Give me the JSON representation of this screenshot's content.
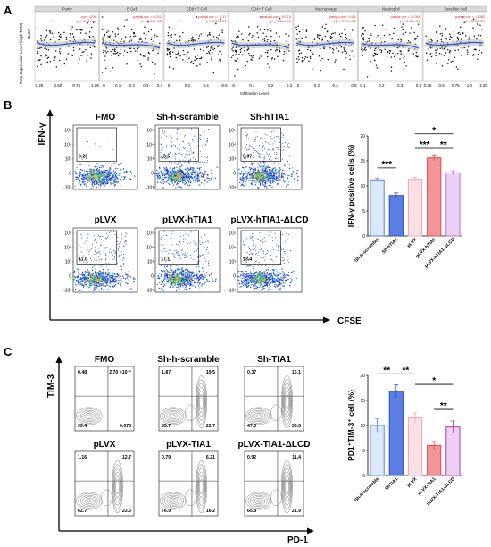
{
  "panel_letters": [
    "A",
    "B",
    "C"
  ],
  "panel_a": {
    "y_label": "TIA1 Expression Level (log2 TPM)",
    "x_label": "Infiltration Level",
    "side_label": "BLCA",
    "cells": [
      {
        "title": "Purity",
        "stat1": "cor = 0.36",
        "stat2": "p = 9.51e-12",
        "ticks": [
          "0.25",
          "0.50",
          "0.75",
          "1.00"
        ]
      },
      {
        "title": "B Cell",
        "stat1": "partial.cor = 0.211",
        "stat2": "p = 5.18e-05",
        "ticks": [
          "0",
          "0.1",
          "0.2",
          "0.3",
          "0.4"
        ]
      },
      {
        "title": "CD8+ T Cell",
        "stat1": "partial.cor = -0.17",
        "stat2": "p = 1.09e-03",
        "ticks": [
          "0",
          "0.2",
          "0.4",
          "0.6"
        ]
      },
      {
        "title": "CD4+ T Cell",
        "stat1": "partial.cor = 0.074",
        "stat2": "p = 1.61e-01",
        "ticks": [
          "0",
          "0.1",
          "0.2",
          "0.3"
        ]
      },
      {
        "title": "Macrophage",
        "stat1": "partial.cor = 0.06",
        "stat2": "p = 1.27e-01",
        "ticks": [
          "0",
          "0.2",
          "0.4",
          "0.6"
        ]
      },
      {
        "title": "Neutrophil",
        "stat1": "partial.cor = -0.059",
        "stat2": "p = 2.68e-01",
        "ticks": [
          "0.1",
          "0.2",
          "0.3",
          "0.4"
        ]
      },
      {
        "title": "Dendritic Cell",
        "stat1": "partial.cor = -0.262",
        "stat2": "p = 3.95e-07",
        "ticks": [
          "0.25",
          "0.5",
          "0.75",
          "1.0",
          "1.25"
        ]
      }
    ]
  },
  "panel_b": {
    "y_axis": "IFN-γ",
    "x_axis": "CFSE",
    "plots": [
      {
        "title": "FMO",
        "value": "0.26"
      },
      {
        "title": "Sh-h-scramble",
        "value": "13.5"
      },
      {
        "title": "Sh-hTIA1",
        "value": "5.87"
      },
      {
        "title": "pLVX",
        "value": "11.0"
      },
      {
        "title": "pLVX-hTIA1",
        "value": "17.1"
      },
      {
        "title": "pLVX-hTIA1-ΔLCD",
        "value": "13.4"
      }
    ],
    "tick_labels": [
      "10⁵",
      "10⁴",
      "10³",
      "0",
      "-10³"
    ],
    "bar_chart": {
      "y_label": "IFN-γ positive cells (%)",
      "y_ticks": [
        "20",
        "15",
        "10",
        "5",
        "0"
      ],
      "sig": [
        "***",
        "*",
        "***",
        "**"
      ],
      "categories": [
        "Sh-h-scramble",
        "Sh-hTIA1",
        "pLVX",
        "pLVX-hTIA1",
        "pLVX-hTIA1-ΔLCD"
      ]
    }
  },
  "panel_c": {
    "y_axis": "TIM-3",
    "x_axis": "PD-1",
    "plots": [
      {
        "title": "FMO",
        "ul": "0.48",
        "ur": "2.70 ×10⁻²",
        "ll": "99.4",
        "lr": "0.078"
      },
      {
        "title": "Sh-h-scramble",
        "ul": "1.87",
        "ur": "19.5",
        "ll": "55.7",
        "lr": "22.7"
      },
      {
        "title": "Sh-TIA1",
        "ul": "0.37",
        "ur": "16.1",
        "ll": "47.0",
        "lr": "36.5"
      },
      {
        "title": "pLVX",
        "ul": "1.16",
        "ur": "12.7",
        "ll": "62.7",
        "lr": "23.5"
      },
      {
        "title": "pLVX-TIA1",
        "ul": "0.79",
        "ur": "6.21",
        "ll": "76.9",
        "lr": "16.2"
      },
      {
        "title": "pLVX-TIA1-ΔLCD",
        "ul": "0.92",
        "ur": "11.4",
        "ll": "65.8",
        "lr": "21.9"
      }
    ],
    "bar_chart": {
      "y_label": "PD1⁺TIM-3⁺ cell (%)",
      "y_ticks": [
        "20",
        "15",
        "10",
        "5",
        "0"
      ],
      "sig": [
        "**",
        "**",
        "*",
        "**"
      ],
      "categories": [
        "Sh-h-scramble",
        "ShTIA1",
        "pLVX",
        "pLVX-TIA1",
        "pLVX-TIA1-ΔLCD"
      ]
    }
  },
  "chart_data": [
    {
      "type": "bar",
      "categories": [
        "Sh-h-scramble",
        "Sh-hTIA1",
        "pLVX",
        "pLVX-hTIA1",
        "pLVX-hTIA1-ΔLCD"
      ],
      "values": [
        11.2,
        8.1,
        11.3,
        15.6,
        12.6
      ],
      "errors": [
        0.3,
        0.5,
        0.4,
        0.6,
        0.4
      ],
      "colors": [
        "#5b86d9",
        "#2f4fc4",
        "#f0a5ad",
        "#e8474f",
        "#c46ad8"
      ],
      "fills": [
        "#dce8fb",
        "#5b7fe0",
        "#fbe1e3",
        "#f2959b",
        "#edd1f5"
      ],
      "ylabel": "IFN-γ positive cells (%)",
      "ylim": [
        0,
        20
      ]
    },
    {
      "type": "bar",
      "categories": [
        "Sh-h-scramble",
        "ShTIA1",
        "pLVX",
        "pLVX-TIA1",
        "pLVX-TIA1-ΔLCD"
      ],
      "values": [
        10.0,
        16.8,
        11.5,
        6.0,
        9.7
      ],
      "errors": [
        1.3,
        1.3,
        1.0,
        0.8,
        1.2
      ],
      "colors": [
        "#5b86d9",
        "#2f4fc4",
        "#f0a5ad",
        "#e8474f",
        "#b23aa8"
      ],
      "fills": [
        "#dce8fb",
        "#5b7fe0",
        "#fbe1e3",
        "#f2959b",
        "#edd1f5"
      ],
      "ylabel": "PD1⁺TIM-3⁺ cell (%)",
      "ylim": [
        0,
        20
      ]
    }
  ]
}
